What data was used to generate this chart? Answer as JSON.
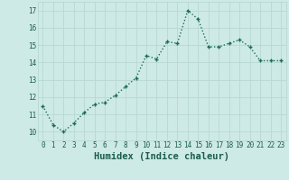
{
  "x": [
    0,
    1,
    2,
    3,
    4,
    5,
    6,
    7,
    8,
    9,
    10,
    11,
    12,
    13,
    14,
    15,
    16,
    17,
    18,
    19,
    20,
    21,
    22,
    23
  ],
  "y": [
    11.5,
    10.4,
    10.0,
    10.5,
    11.1,
    11.6,
    11.7,
    12.1,
    12.6,
    13.1,
    14.4,
    14.2,
    15.2,
    15.1,
    17.0,
    16.5,
    14.9,
    14.9,
    15.1,
    15.3,
    14.9,
    14.1,
    14.1,
    14.1
  ],
  "line_color": "#1a6b5a",
  "bg_color": "#ceeae6",
  "grid_color": "#b8d8d4",
  "xlabel": "Humidex (Indice chaleur)",
  "ylim": [
    9.5,
    17.5
  ],
  "yticks": [
    10,
    11,
    12,
    13,
    14,
    15,
    16,
    17
  ],
  "xticks": [
    0,
    1,
    2,
    3,
    4,
    5,
    6,
    7,
    8,
    9,
    10,
    11,
    12,
    13,
    14,
    15,
    16,
    17,
    18,
    19,
    20,
    21,
    22,
    23
  ],
  "marker": "+",
  "markersize": 3.5,
  "linewidth": 1.0,
  "font_color": "#1a5c4e",
  "tick_fontsize": 5.5,
  "xlabel_fontsize": 7.5
}
